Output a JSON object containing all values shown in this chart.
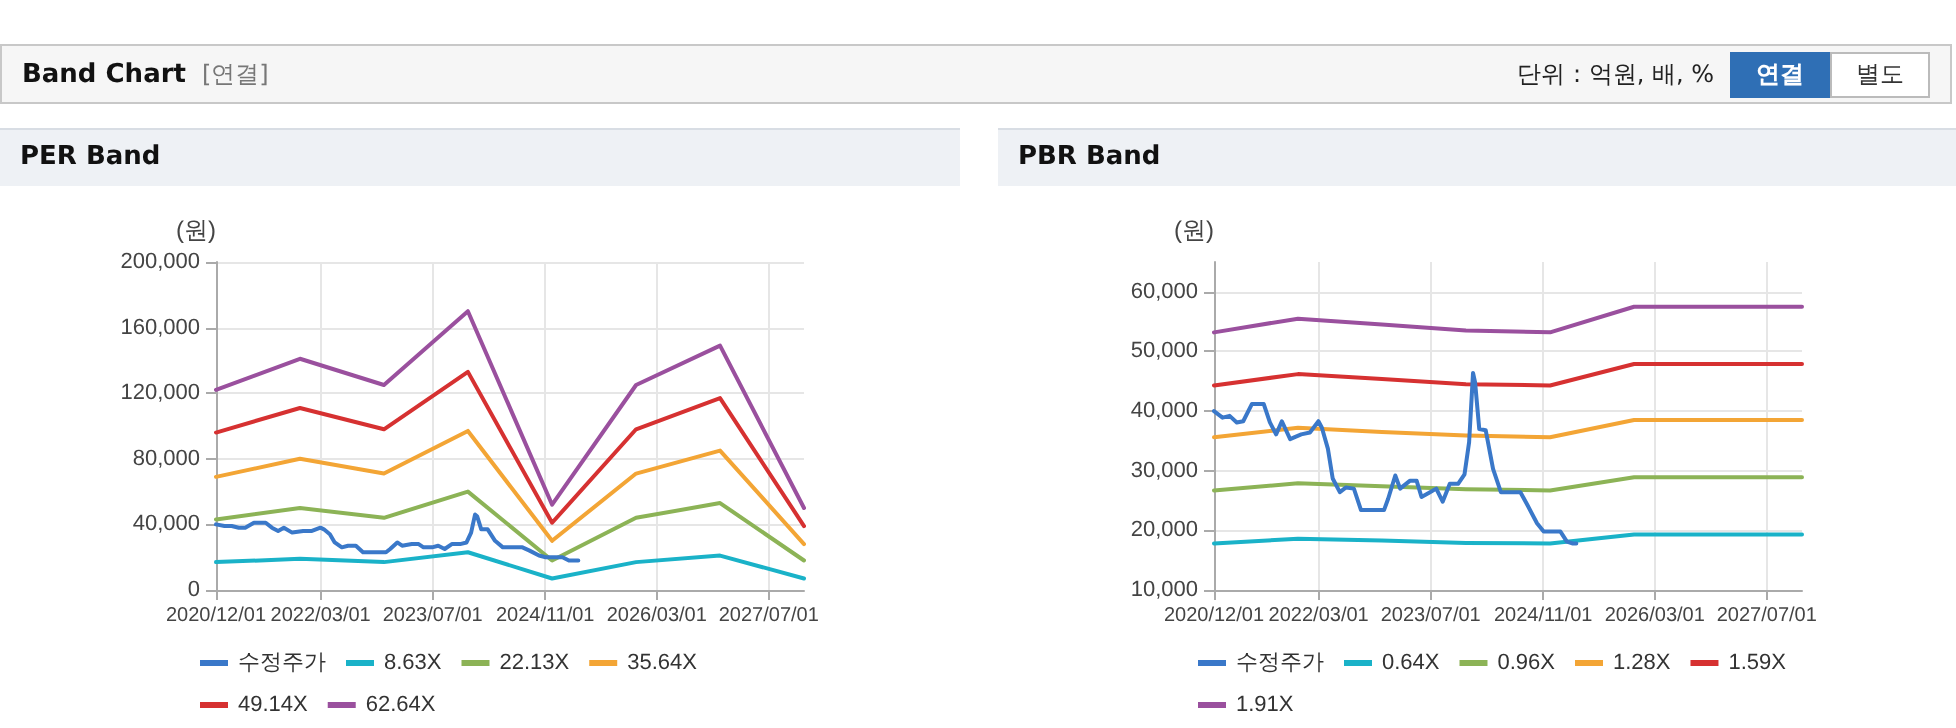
{
  "chart_data": [
    {
      "type": "other",
      "title": "Band Chart",
      "subtitle": "[연결]",
      "annotations": [
        "단위 : 억원, 배, %",
        "연결",
        "별도"
      ]
    },
    {
      "type": "line",
      "title": "PER Band",
      "ylabel": "(원)",
      "x": [
        "2020-12-01",
        "2021-12-01",
        "2022-12-01",
        "2023-12-01",
        "2024-12-01",
        "2025-12-01",
        "2026-12-01",
        "2027-12-01"
      ],
      "xlim": [
        "2020-12-01",
        "2027-12-01"
      ],
      "xticks": [
        {
          "value": "2020-12-01",
          "label": "2020/12/01"
        },
        {
          "value": "2022-03-01",
          "label": "2022/03/01"
        },
        {
          "value": "2023-07-01",
          "label": "2023/07/01"
        },
        {
          "value": "2024-11-01",
          "label": "2024/11/01"
        },
        {
          "value": "2026-03-01",
          "label": "2026/03/01"
        },
        {
          "value": "2027-07-01",
          "label": "2027/07/01"
        }
      ],
      "ylim": [
        0,
        200000
      ],
      "yticks": [
        {
          "value": 0,
          "label": "0"
        },
        {
          "value": 40000,
          "label": "40,000"
        },
        {
          "value": 80000,
          "label": "80,000"
        },
        {
          "value": 120000,
          "label": "120,000"
        },
        {
          "value": 160000,
          "label": "160,000"
        },
        {
          "value": 200000,
          "label": "200,000"
        }
      ],
      "grid": true,
      "legend": "bottom",
      "marker": "none",
      "line_style": "solid",
      "series": [
        {
          "name": "수정주가",
          "color": "#3a78c9",
          "x": [
            "2020-12-01",
            "2021-01-07",
            "2021-02-07",
            "2021-03-10",
            "2021-04-07",
            "2021-05-15",
            "2021-07-05",
            "2021-08-01",
            "2021-08-28",
            "2021-09-22",
            "2021-10-28",
            "2021-12-15",
            "2022-01-22",
            "2022-02-28",
            "2022-03-15",
            "2022-04-10",
            "2022-05-01",
            "2022-06-01",
            "2022-06-28",
            "2022-08-01",
            "2022-09-01",
            "2022-12-10",
            "2022-12-28",
            "2023-01-28",
            "2023-02-18",
            "2023-04-01",
            "2023-05-01",
            "2023-05-22",
            "2023-06-28",
            "2023-07-25",
            "2023-08-22",
            "2023-09-22",
            "2023-10-28",
            "2023-11-25",
            "2023-12-15",
            "2024-01-01",
            "2024-01-10",
            "2024-01-28",
            "2024-02-25",
            "2024-03-28",
            "2024-05-01",
            "2024-06-12",
            "2024-07-25",
            "2024-08-25",
            "2024-10-05",
            "2024-11-03",
            "2024-12-15",
            "2025-01-15",
            "2025-02-12",
            "2025-03-10",
            "2025-03-25"
          ],
          "values": [
            40000,
            39000,
            39000,
            38000,
            38000,
            41000,
            41000,
            38000,
            36000,
            38000,
            35000,
            36000,
            36000,
            38000,
            37000,
            34000,
            29000,
            26000,
            27000,
            27000,
            23000,
            23000,
            25000,
            29000,
            27000,
            28000,
            28000,
            26000,
            26000,
            27000,
            25000,
            28000,
            28000,
            29000,
            35000,
            46000,
            45000,
            37000,
            37000,
            30000,
            26000,
            26000,
            26000,
            24000,
            21000,
            20000,
            20000,
            20000,
            18000,
            18000,
            18000
          ]
        },
        {
          "name": "8.63X",
          "color": "#1ab2c8",
          "values": [
            17000,
            19000,
            17000,
            23000,
            7000,
            17000,
            21000,
            7000
          ]
        },
        {
          "name": "22.13X",
          "color": "#8cb356",
          "values": [
            43000,
            50000,
            44000,
            60000,
            18000,
            44000,
            53000,
            18000
          ]
        },
        {
          "name": "35.64X",
          "color": "#f3a535",
          "values": [
            69000,
            80000,
            71000,
            97000,
            30000,
            71000,
            85000,
            28000
          ]
        },
        {
          "name": "49.14X",
          "color": "#d63131",
          "values": [
            96000,
            111000,
            98000,
            133000,
            41000,
            98000,
            117000,
            39000
          ]
        },
        {
          "name": "62.64X",
          "color": "#9a509e",
          "values": [
            122000,
            141000,
            125000,
            170000,
            52000,
            125000,
            149000,
            50000
          ]
        }
      ]
    },
    {
      "type": "line",
      "title": "PBR Band",
      "ylabel": "(원)",
      "x": [
        "2020-12-01",
        "2021-12-01",
        "2022-12-01",
        "2023-12-01",
        "2024-12-01",
        "2025-12-01",
        "2026-12-01",
        "2027-12-01"
      ],
      "xlim": [
        "2020-12-01",
        "2027-12-01"
      ],
      "xticks": [
        {
          "value": "2020-12-01",
          "label": "2020/12/01"
        },
        {
          "value": "2022-03-01",
          "label": "2022/03/01"
        },
        {
          "value": "2023-07-01",
          "label": "2023/07/01"
        },
        {
          "value": "2024-11-01",
          "label": "2024/11/01"
        },
        {
          "value": "2026-03-01",
          "label": "2026/03/01"
        },
        {
          "value": "2027-07-01",
          "label": "2027/07/01"
        }
      ],
      "ylim": [
        10000,
        65000
      ],
      "yticks": [
        {
          "value": 10000,
          "label": "10,000"
        },
        {
          "value": 20000,
          "label": "20,000"
        },
        {
          "value": 30000,
          "label": "30,000"
        },
        {
          "value": 40000,
          "label": "40,000"
        },
        {
          "value": 50000,
          "label": "50,000"
        },
        {
          "value": 60000,
          "label": "60,000"
        }
      ],
      "grid": true,
      "legend": "bottom",
      "marker": "none",
      "line_style": "solid",
      "series": [
        {
          "name": "수정주가",
          "color": "#3a78c9",
          "x": [
            "2020-12-01",
            "2021-01-07",
            "2021-02-07",
            "2021-03-10",
            "2021-04-07",
            "2021-05-15",
            "2021-07-05",
            "2021-08-01",
            "2021-08-28",
            "2021-09-22",
            "2021-10-28",
            "2021-12-15",
            "2022-01-22",
            "2022-02-28",
            "2022-03-15",
            "2022-04-10",
            "2022-05-01",
            "2022-06-01",
            "2022-06-28",
            "2022-08-01",
            "2022-09-01",
            "2022-12-10",
            "2022-12-28",
            "2023-01-28",
            "2023-02-18",
            "2023-04-01",
            "2023-05-01",
            "2023-05-22",
            "2023-06-28",
            "2023-07-25",
            "2023-08-22",
            "2023-09-22",
            "2023-10-28",
            "2023-11-25",
            "2023-12-15",
            "2024-01-01",
            "2024-01-10",
            "2024-01-28",
            "2024-02-25",
            "2024-03-28",
            "2024-05-01",
            "2024-06-12",
            "2024-07-25",
            "2024-08-25",
            "2024-10-05",
            "2024-11-03",
            "2024-12-15",
            "2025-01-15",
            "2025-02-12",
            "2025-03-10",
            "2025-03-25"
          ],
          "values": [
            40000,
            38900,
            39200,
            38100,
            38300,
            41200,
            41200,
            38100,
            36100,
            38300,
            35300,
            36100,
            36400,
            38300,
            37200,
            33700,
            28700,
            26400,
            27200,
            27000,
            23400,
            23400,
            25300,
            29200,
            27000,
            28300,
            28300,
            25600,
            26400,
            27000,
            24800,
            27800,
            27800,
            29400,
            34800,
            46400,
            44800,
            37000,
            36800,
            30300,
            26400,
            26400,
            26400,
            24200,
            21200,
            19800,
            19800,
            19800,
            18100,
            17800,
            17800
          ]
        },
        {
          "name": "0.64X",
          "color": "#1ab2c8",
          "values": [
            17800,
            18600,
            18300,
            17900,
            17800,
            19300,
            19300,
            19300
          ]
        },
        {
          "name": "0.96X",
          "color": "#8cb356",
          "values": [
            26700,
            27900,
            27400,
            26900,
            26700,
            28900,
            28900,
            28900
          ]
        },
        {
          "name": "1.28X",
          "color": "#f3a535",
          "values": [
            35600,
            37200,
            36500,
            35900,
            35600,
            38500,
            38500,
            38500
          ]
        },
        {
          "name": "1.59X",
          "color": "#d63131",
          "values": [
            44300,
            46200,
            45400,
            44500,
            44300,
            47900,
            47900,
            47900
          ]
        },
        {
          "name": "1.91X",
          "color": "#9a509e",
          "values": [
            53200,
            55500,
            54500,
            53500,
            53200,
            57500,
            57500,
            57500
          ]
        }
      ]
    }
  ]
}
